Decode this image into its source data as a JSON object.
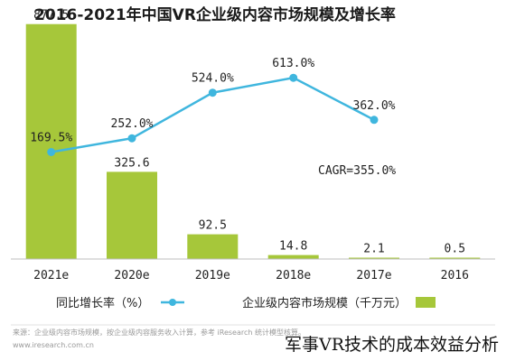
{
  "chart_data": {
    "type": "bar",
    "title": "2016-2021年中国VR企业级内容市场规模及增长率",
    "categories": [
      "2021e",
      "2020e",
      "2019e",
      "2018e",
      "2017e",
      "2016"
    ],
    "values": [
      877.5,
      325.6,
      92.5,
      14.8,
      2.1,
      0.5
    ],
    "value_labels": [
      "877.5",
      "325.6",
      "92.5",
      "14.8",
      "2.1",
      "0.5"
    ],
    "growth": [
      169.5,
      252.0,
      524.0,
      613.0,
      362.0,
      null
    ],
    "growth_labels": [
      "169.5%",
      "252.0%",
      "524.0%",
      "613.0%",
      "362.0%"
    ],
    "annotation": "CAGR=355.0%",
    "legend": {
      "bar": "企业级内容市场规模（千万元）",
      "line": "同比增长率（%）"
    },
    "ylim": [
      0,
      900
    ],
    "line_ylim": [
      0,
      700
    ],
    "colors": {
      "bar": "#a6c73a",
      "line": "#3fb6de",
      "axis": "#bdbdbd"
    }
  },
  "source_text": "来源：企业级内容市场规模，按企业级内容服务收入计算，参考 iResearch 统计模型核算。",
  "watermark": "www.iresearch.com.cn",
  "caption": "军事VR技术的成本效益分析"
}
